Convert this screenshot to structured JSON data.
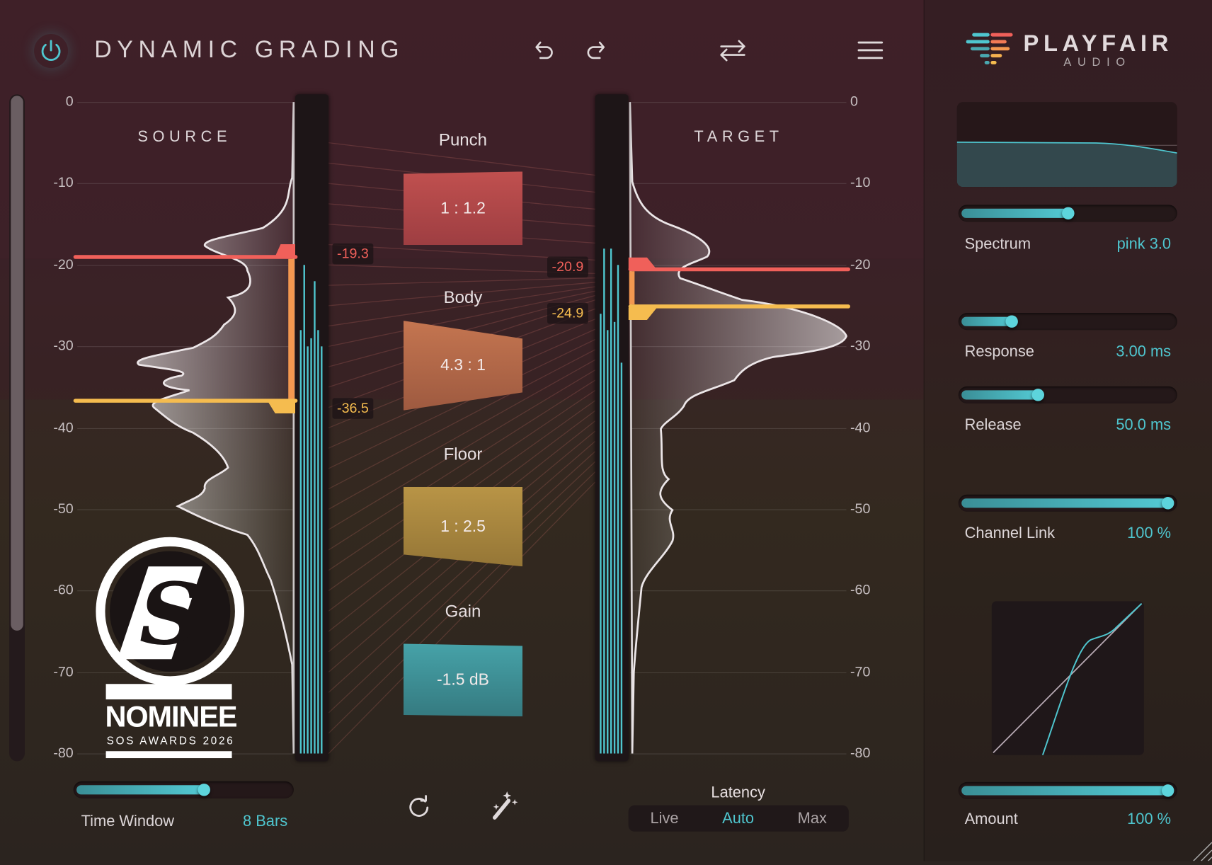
{
  "header": {
    "title": "DYNAMIC GRADING",
    "power_on": true,
    "icons": [
      "power-icon",
      "undo-icon",
      "redo-icon",
      "swap-icon",
      "menu-icon"
    ]
  },
  "logo": {
    "name": "PLAYFAIR",
    "sub": "AUDIO"
  },
  "source": {
    "label": "SOURCE",
    "threshold_high": "-19.3",
    "threshold_low": "-36.5"
  },
  "target": {
    "label": "TARGET",
    "threshold_high": "-20.9",
    "threshold_low": "-24.9"
  },
  "scale_ticks": [
    "0",
    "-10",
    "-20",
    "-30",
    "-40",
    "-50",
    "-60",
    "-70",
    "-80"
  ],
  "bands": [
    {
      "name": "Punch",
      "value": "1 : 1.2",
      "color": "#b5474a"
    },
    {
      "name": "Body",
      "value": "4.3 : 1",
      "color": "#b56a48"
    },
    {
      "name": "Floor",
      "value": "1 : 2.5",
      "color": "#a9883e"
    },
    {
      "name": "Gain",
      "value": "-1.5 dB",
      "color": "#3f9097"
    }
  ],
  "colors": {
    "accent": "#4fc6cf",
    "threshold_high": "#f0605a",
    "threshold_low": "#f5bc4f"
  },
  "badge": {
    "title": "NOMINEE",
    "sub": "SOS AWARDS 2026"
  },
  "time_window": {
    "label": "Time Window",
    "value": "8 Bars",
    "level": 0.6
  },
  "latency": {
    "label": "Latency",
    "options": [
      "Live",
      "Auto",
      "Max"
    ],
    "selected": "Auto"
  },
  "controls": [
    {
      "label": "Spectrum",
      "value": "pink 3.0",
      "level": 0.5
    },
    {
      "label": "Response",
      "value": "3.00 ms",
      "level": 0.22
    },
    {
      "label": "Release",
      "value": "50.0 ms",
      "level": 0.35
    },
    {
      "label": "Channel Link",
      "value": "100 %",
      "level": 1.0
    },
    {
      "label": "Amount",
      "value": "100 %",
      "level": 1.0
    }
  ],
  "meters": {
    "source_db": [
      -28,
      -20,
      -30,
      -29,
      -22,
      -28,
      -30
    ],
    "target_db": [
      -26,
      -18,
      -28,
      -18,
      -27,
      -20,
      -32
    ]
  }
}
